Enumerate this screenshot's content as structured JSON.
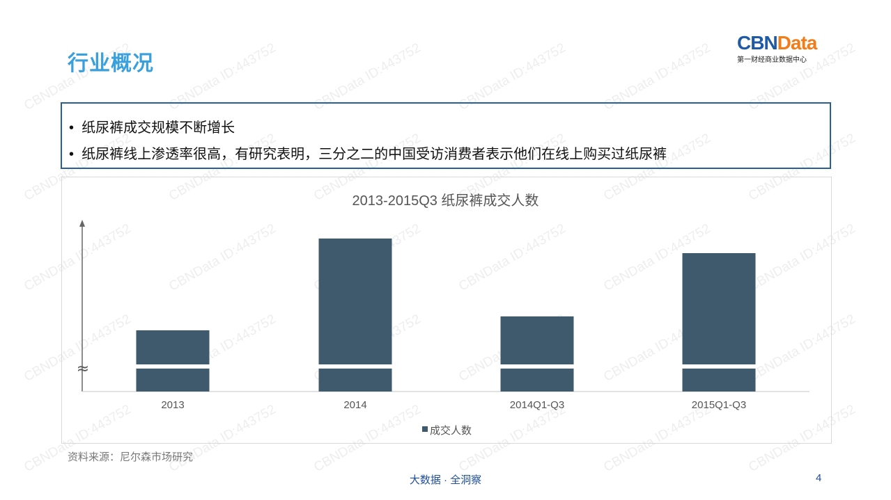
{
  "slide": {
    "title": "行业概况",
    "logo": {
      "brand_a": "CBN",
      "brand_b": "Data",
      "tagline": "第一财经商业数据中心",
      "color_a": "#1f5aa6",
      "color_b": "#f07d1a"
    },
    "bullets": [
      "纸尿裤成交规模不断增长",
      "纸尿裤线上渗透率很高，有研究表明，三分之二的中国受访消费者表示他们在线上购买过纸尿裤"
    ],
    "source": "资料来源：尼尔森市场研究",
    "footer": "大数据 · 全洞察",
    "page_number": "4",
    "watermark": "CBNData ID:443752"
  },
  "chart_data": {
    "type": "bar",
    "title": "2013-2015Q3 纸尿裤成交人数",
    "categories": [
      "2013",
      "2014",
      "2014Q1-Q3",
      "2015Q1-Q3"
    ],
    "series": [
      {
        "name": "成交人数",
        "values": [
          88,
          220,
          108,
          199
        ],
        "color": "#3f5a6c"
      }
    ],
    "y_axis_labels": false,
    "y_axis_break": true,
    "note": "",
    "legend_position": "bottom",
    "grid": false
  }
}
